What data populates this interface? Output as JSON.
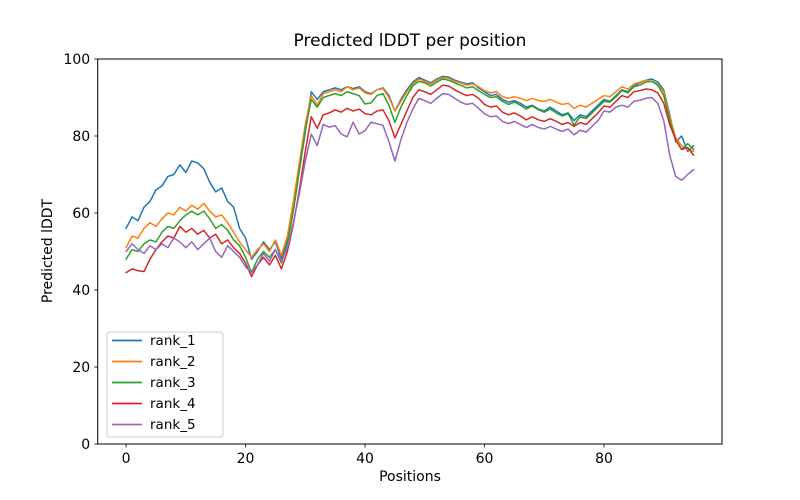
{
  "chart_data": {
    "type": "line",
    "title": "Predicted lDDT per position",
    "xlabel": "Positions",
    "ylabel": "Predicted lDDT",
    "xlim": [
      -4.75,
      99.75
    ],
    "ylim": [
      0,
      100
    ],
    "x_ticks": [
      0,
      20,
      40,
      60,
      80
    ],
    "y_ticks": [
      0,
      20,
      40,
      60,
      80,
      100
    ],
    "grid": false,
    "legend_position": "lower-left",
    "x_mode": "index (positions 0-95)",
    "series": [
      {
        "name": "rank_1",
        "color": "#1f77b4",
        "values": [
          56,
          59,
          58,
          61.5,
          63,
          66,
          67,
          69.5,
          70,
          72.5,
          70.5,
          73.5,
          73,
          71.5,
          68,
          65.5,
          66.5,
          63,
          61.5,
          56,
          53.5,
          48,
          50,
          52.5,
          50.5,
          52.5,
          48,
          53,
          61,
          71,
          81,
          91.5,
          89.5,
          91.5,
          92,
          92.5,
          92,
          92.8,
          92.3,
          92.8,
          91.5,
          91,
          92,
          92.5,
          90.5,
          86.5,
          89.5,
          92,
          94,
          95.2,
          94.5,
          93.8,
          94.8,
          95.5,
          95.3,
          94.5,
          94,
          93.5,
          93.8,
          92.5,
          91.5,
          90.5,
          90.8,
          89.5,
          88.8,
          89.2,
          88.5,
          87.5,
          88,
          87,
          86.5,
          87.5,
          86.5,
          85.5,
          86,
          84,
          85.5,
          85,
          86.5,
          88,
          89.5,
          89,
          90.5,
          92,
          91.5,
          93,
          93.8,
          94.5,
          94.8,
          94,
          92,
          85.5,
          78.5,
          80,
          76,
          77.5
        ]
      },
      {
        "name": "rank_2",
        "color": "#ff7f0e",
        "values": [
          51,
          54,
          53.5,
          56,
          57.5,
          56.5,
          58.5,
          60,
          59.5,
          61.5,
          60.5,
          62,
          61,
          62.5,
          60.5,
          59,
          59.5,
          57.5,
          55,
          52.5,
          50.5,
          48.5,
          50.5,
          52,
          50,
          53,
          49,
          54,
          63,
          73,
          83,
          90.5,
          88,
          91,
          91.5,
          92,
          91.5,
          92.8,
          92,
          92.5,
          91.2,
          90.8,
          92,
          92.3,
          90,
          86.5,
          89,
          91.5,
          93.5,
          94.8,
          94.2,
          93.5,
          94.5,
          95.2,
          95,
          94.2,
          93.8,
          93.2,
          93.5,
          92.8,
          91.8,
          91.2,
          91.5,
          90.2,
          89.8,
          90.2,
          89.8,
          89.2,
          89.8,
          89.2,
          89,
          89.5,
          88.8,
          88.2,
          88.5,
          87.2,
          88,
          87.5,
          88.5,
          89.5,
          90.5,
          90.2,
          91.5,
          92.8,
          92.2,
          93.5,
          94,
          94.5,
          94.2,
          93.5,
          91.5,
          85,
          79.5,
          77.5,
          76.5,
          76
        ]
      },
      {
        "name": "rank_3",
        "color": "#2ca02c",
        "values": [
          48,
          50.5,
          50,
          52,
          53,
          52.5,
          55,
          56.5,
          56,
          58,
          59.5,
          60.5,
          59.5,
          60.5,
          58.5,
          56,
          57,
          55.5,
          53,
          51.5,
          48.5,
          44.5,
          48,
          50,
          48.5,
          50.5,
          47,
          52,
          60.5,
          71,
          81.5,
          89.5,
          87.5,
          90,
          90.5,
          91,
          90.5,
          91.5,
          91,
          90.5,
          88.3,
          88.6,
          90.5,
          91,
          88,
          83.5,
          87.5,
          90.5,
          93,
          94.2,
          93.8,
          93,
          94,
          94.8,
          94.5,
          93.8,
          93.2,
          92.5,
          92.8,
          91.8,
          90.8,
          90,
          90.2,
          89,
          88.2,
          88.8,
          88,
          87,
          87.8,
          86.8,
          86.2,
          87,
          86,
          85.2,
          85.8,
          82.8,
          85,
          84.5,
          86,
          87.5,
          89,
          88.8,
          90.2,
          91.8,
          91.2,
          92.8,
          93.2,
          94,
          94.2,
          93.2,
          90.5,
          84,
          79,
          76.5,
          78,
          76.5
        ]
      },
      {
        "name": "rank_4",
        "color": "#d62728",
        "values": [
          44.5,
          45.5,
          45,
          44.8,
          48,
          50.5,
          52.5,
          54,
          53.5,
          56.5,
          55,
          56,
          54.5,
          55.5,
          53.5,
          54.5,
          52,
          53,
          51,
          49.5,
          47,
          43.5,
          46.5,
          48.5,
          46.5,
          49,
          45.5,
          50,
          57,
          66,
          76,
          85,
          82,
          85.5,
          86,
          86.8,
          86.2,
          87.2,
          86.5,
          87,
          85.8,
          85.5,
          86.5,
          86.8,
          84,
          79.5,
          83,
          86.5,
          90,
          92,
          91.5,
          90.8,
          92,
          93.2,
          93,
          92,
          91.2,
          90.5,
          90.8,
          89.8,
          88.2,
          87.5,
          87.8,
          86.2,
          85.5,
          86,
          85.2,
          84.2,
          85,
          84.2,
          83.8,
          84.5,
          83.8,
          83,
          83.5,
          82.5,
          83.5,
          83,
          84.5,
          86,
          87.8,
          87.5,
          89,
          90.5,
          90,
          91.5,
          91.8,
          92.2,
          92,
          91.2,
          88.5,
          83,
          79,
          76.5,
          77,
          75
        ]
      },
      {
        "name": "rank_5",
        "color": "#9467bd",
        "values": [
          50,
          52,
          50.5,
          49.5,
          51.5,
          50.5,
          52,
          51,
          53.5,
          52.5,
          51,
          52.5,
          50.5,
          52,
          53.5,
          50,
          48.5,
          51.5,
          50,
          48.5,
          46,
          44.5,
          46.5,
          49.5,
          47.5,
          50.5,
          47.5,
          51,
          57.5,
          65,
          73.5,
          80.5,
          77.5,
          83,
          82.3,
          82.7,
          80.5,
          79.8,
          83.6,
          80.5,
          81.4,
          83.6,
          83.2,
          82.8,
          78.5,
          73.5,
          79,
          83.5,
          87,
          89.8,
          89.2,
          88.5,
          89.8,
          91,
          90.8,
          89.8,
          88.8,
          88.2,
          88.5,
          87.2,
          85.8,
          85,
          85.2,
          83.8,
          83.2,
          83.8,
          83,
          82.2,
          83,
          82.2,
          81.8,
          82.5,
          81.8,
          81.2,
          81.8,
          80.3,
          81.5,
          81,
          82.5,
          84,
          86.5,
          86.2,
          87.5,
          88,
          87.5,
          89,
          89.3,
          89.8,
          90,
          88.5,
          84,
          75,
          69.5,
          68.5,
          70,
          71.3
        ]
      }
    ],
    "style": {
      "spine_color": "#000000",
      "tick_color": "#000000",
      "legend_edge_color": "#cccccc",
      "legend_face_color": "#ffffff",
      "background": "#ffffff",
      "line_width": 1.5
    }
  }
}
